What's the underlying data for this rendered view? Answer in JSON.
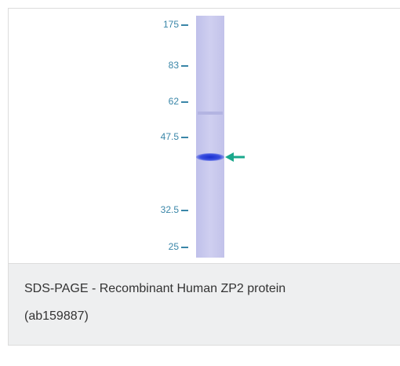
{
  "figure": {
    "markers": [
      "175",
      "83",
      "62",
      "47.5",
      "32.5",
      "25"
    ]
  },
  "caption": {
    "line1": "SDS-PAGE - Recombinant Human ZP2 protein",
    "line2": "(ab159887)"
  }
}
